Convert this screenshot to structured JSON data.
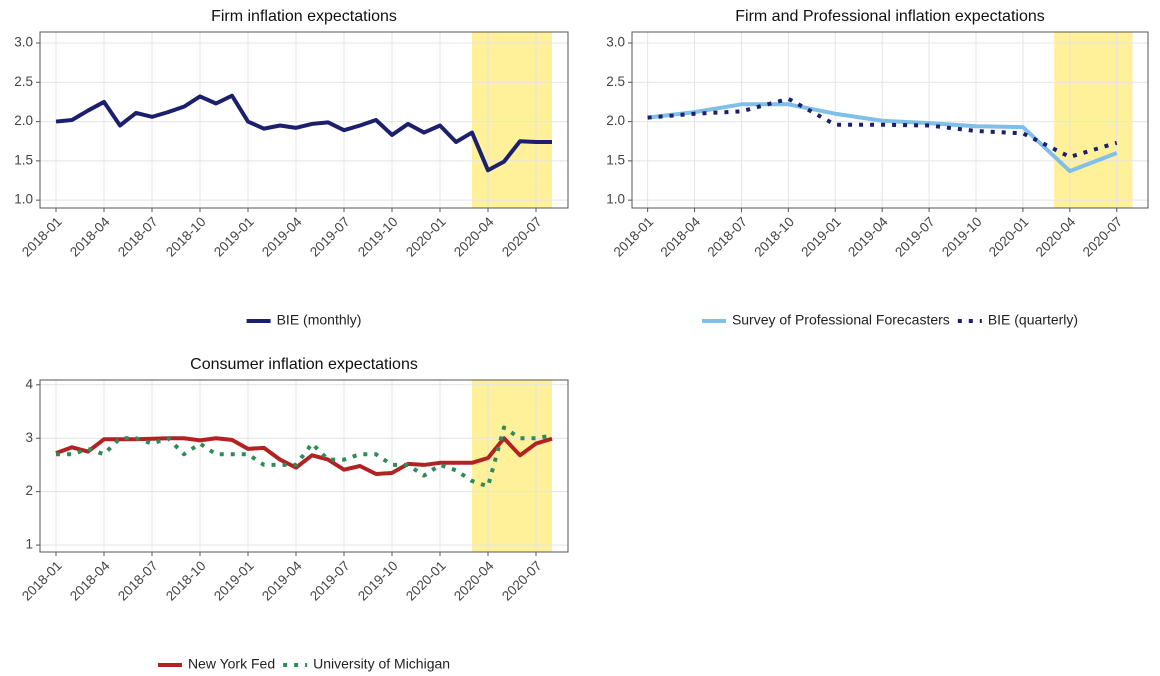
{
  "chart_data": [
    {
      "type": "line",
      "title": "Firm inflation expectations",
      "x": [
        "2018-01",
        "2018-02",
        "2018-03",
        "2018-04",
        "2018-05",
        "2018-06",
        "2018-07",
        "2018-08",
        "2018-09",
        "2018-10",
        "2018-11",
        "2018-12",
        "2019-01",
        "2019-02",
        "2019-03",
        "2019-04",
        "2019-05",
        "2019-06",
        "2019-07",
        "2019-08",
        "2019-09",
        "2019-10",
        "2019-11",
        "2019-12",
        "2020-01",
        "2020-02",
        "2020-03",
        "2020-04",
        "2020-05",
        "2020-06",
        "2020-07",
        "2020-08"
      ],
      "series": [
        {
          "name": "BIE (monthly)",
          "color": "#1b1f6e",
          "style": "solid",
          "values": [
            2.0,
            2.02,
            2.14,
            2.25,
            1.95,
            2.11,
            2.06,
            2.12,
            2.19,
            2.32,
            2.23,
            2.33,
            2.0,
            1.91,
            1.95,
            1.92,
            1.97,
            1.99,
            1.89,
            1.95,
            2.02,
            1.83,
            1.97,
            1.86,
            1.95,
            1.74,
            1.86,
            1.38,
            1.49,
            1.75,
            1.74,
            1.74
          ]
        }
      ],
      "highlight": [
        "2020-03",
        "2020-08"
      ],
      "highlight_color": "#fff09a",
      "xlim": [
        "2017-12",
        "2020-09"
      ],
      "xticks": [
        "2018-01",
        "2018-04",
        "2018-07",
        "2018-10",
        "2019-01",
        "2019-04",
        "2019-07",
        "2019-10",
        "2020-01",
        "2020-04",
        "2020-07"
      ],
      "ylim": [
        0.9,
        3.14
      ],
      "yticks": [
        {
          "value": 1,
          "label": "1.0"
        },
        {
          "value": 1.5,
          "label": "1.5"
        },
        {
          "value": 2,
          "label": "2.0"
        },
        {
          "value": 2.5,
          "label": "2.5"
        },
        {
          "value": 3,
          "label": "3.0"
        }
      ],
      "grid": true,
      "legend": "bottom"
    },
    {
      "type": "line",
      "title": "Firm and Professional inflation expectations",
      "x": [
        "2018-01",
        "2018-04",
        "2018-07",
        "2018-10",
        "2019-01",
        "2019-04",
        "2019-07",
        "2019-10",
        "2020-01",
        "2020-04",
        "2020-07"
      ],
      "series": [
        {
          "name": "Survey of Professional Forecasters",
          "color": "#7fbfe8",
          "style": "solid",
          "values": [
            2.05,
            2.12,
            2.22,
            2.22,
            2.1,
            2.01,
            1.98,
            1.94,
            1.93,
            1.37,
            1.6
          ]
        },
        {
          "name": "BIE (quarterly)",
          "color": "#1b1f6e",
          "style": "dotted",
          "values": [
            2.05,
            2.1,
            2.13,
            2.29,
            1.96,
            1.96,
            1.95,
            1.88,
            1.85,
            1.55,
            1.73
          ]
        }
      ],
      "highlight": [
        "2020-03",
        "2020-08"
      ],
      "highlight_color": "#fff09a",
      "xlim": [
        "2017-12",
        "2020-09"
      ],
      "xticks": [
        "2018-01",
        "2018-04",
        "2018-07",
        "2018-10",
        "2019-01",
        "2019-04",
        "2019-07",
        "2019-10",
        "2020-01",
        "2020-04",
        "2020-07"
      ],
      "ylim": [
        0.9,
        3.14
      ],
      "yticks": [
        {
          "value": 1,
          "label": "1.0"
        },
        {
          "value": 1.5,
          "label": "1.5"
        },
        {
          "value": 2,
          "label": "2.0"
        },
        {
          "value": 2.5,
          "label": "2.5"
        },
        {
          "value": 3,
          "label": "3.0"
        }
      ],
      "grid": true,
      "legend": "bottom"
    },
    {
      "type": "line",
      "title": "Consumer inflation expectations",
      "x": [
        "2018-01",
        "2018-02",
        "2018-03",
        "2018-04",
        "2018-05",
        "2018-06",
        "2018-07",
        "2018-08",
        "2018-09",
        "2018-10",
        "2018-11",
        "2018-12",
        "2019-01",
        "2019-02",
        "2019-03",
        "2019-04",
        "2019-05",
        "2019-06",
        "2019-07",
        "2019-08",
        "2019-09",
        "2019-10",
        "2019-11",
        "2019-12",
        "2020-01",
        "2020-02",
        "2020-03",
        "2020-04",
        "2020-05",
        "2020-06",
        "2020-07",
        "2020-08"
      ],
      "series": [
        {
          "name": "New York Fed",
          "color": "#b22222",
          "style": "solid",
          "values": [
            2.72,
            2.83,
            2.75,
            2.98,
            2.98,
            2.98,
            2.99,
            3.0,
            3.0,
            2.96,
            3.0,
            2.97,
            2.8,
            2.82,
            2.6,
            2.45,
            2.68,
            2.6,
            2.41,
            2.48,
            2.33,
            2.35,
            2.52,
            2.5,
            2.54,
            2.54,
            2.54,
            2.63,
            3.0,
            2.68,
            2.9,
            2.99
          ]
        },
        {
          "name": "University of Michigan",
          "color": "#2e8b57",
          "style": "dotted",
          "values": [
            2.7,
            2.7,
            2.8,
            2.7,
            3.0,
            3.0,
            2.9,
            3.0,
            2.7,
            2.9,
            2.7,
            2.7,
            2.7,
            2.5,
            2.5,
            2.5,
            2.9,
            2.6,
            2.6,
            2.7,
            2.7,
            2.5,
            2.5,
            2.3,
            2.5,
            2.4,
            2.2,
            2.1,
            3.2,
            3.0,
            3.0,
            3.05
          ]
        }
      ],
      "highlight": [
        "2020-03",
        "2020-08"
      ],
      "highlight_color": "#fff09a",
      "xlim": [
        "2017-12",
        "2020-09"
      ],
      "xticks": [
        "2018-01",
        "2018-04",
        "2018-07",
        "2018-10",
        "2019-01",
        "2019-04",
        "2019-07",
        "2019-10",
        "2020-01",
        "2020-04",
        "2020-07"
      ],
      "ylim": [
        0.87,
        4.09
      ],
      "yticks": [
        1,
        2,
        3,
        4
      ],
      "grid": true,
      "legend": "bottom"
    }
  ]
}
